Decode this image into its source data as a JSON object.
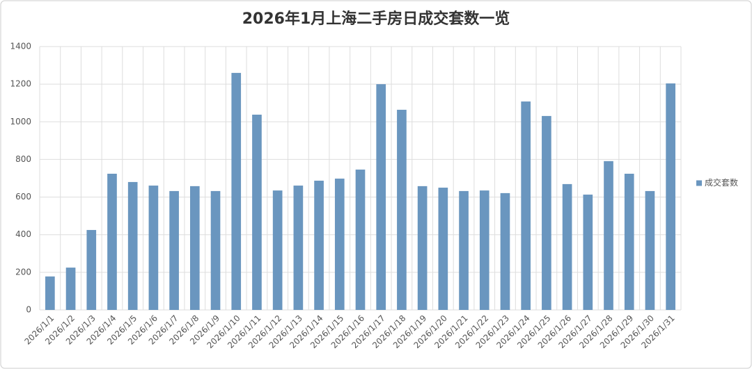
{
  "chart_data": {
    "type": "bar",
    "title": "2026年1月上海二手房日成交套数一览",
    "categories": [
      "2026/1/1",
      "2026/1/2",
      "2026/1/3",
      "2026/1/4",
      "2026/1/5",
      "2026/1/6",
      "2026/1/7",
      "2026/1/8",
      "2026/1/9",
      "2026/1/10",
      "2026/1/11",
      "2026/1/12",
      "2026/1/13",
      "2026/1/14",
      "2026/1/15",
      "2026/1/16",
      "2026/1/17",
      "2026/1/18",
      "2026/1/19",
      "2026/1/20",
      "2026/1/21",
      "2026/1/22",
      "2026/1/23",
      "2026/1/24",
      "2026/1/25",
      "2026/1/26",
      "2026/1/27",
      "2026/1/28",
      "2026/1/29",
      "2026/1/30",
      "2026/1/31"
    ],
    "series": [
      {
        "name": "成交套数",
        "color": "#6a96bf",
        "values": [
          178,
          225,
          425,
          724,
          680,
          661,
          632,
          658,
          632,
          1260,
          1038,
          635,
          661,
          687,
          698,
          746,
          1200,
          1064,
          658,
          650,
          632,
          635,
          621,
          1108,
          1031,
          669,
          613,
          791,
          724,
          632,
          1204
        ]
      }
    ],
    "ylim": [
      0,
      1400
    ],
    "yticks": [
      0,
      200,
      400,
      600,
      800,
      1000,
      1200,
      1400
    ],
    "grid": true,
    "legend": "right"
  }
}
